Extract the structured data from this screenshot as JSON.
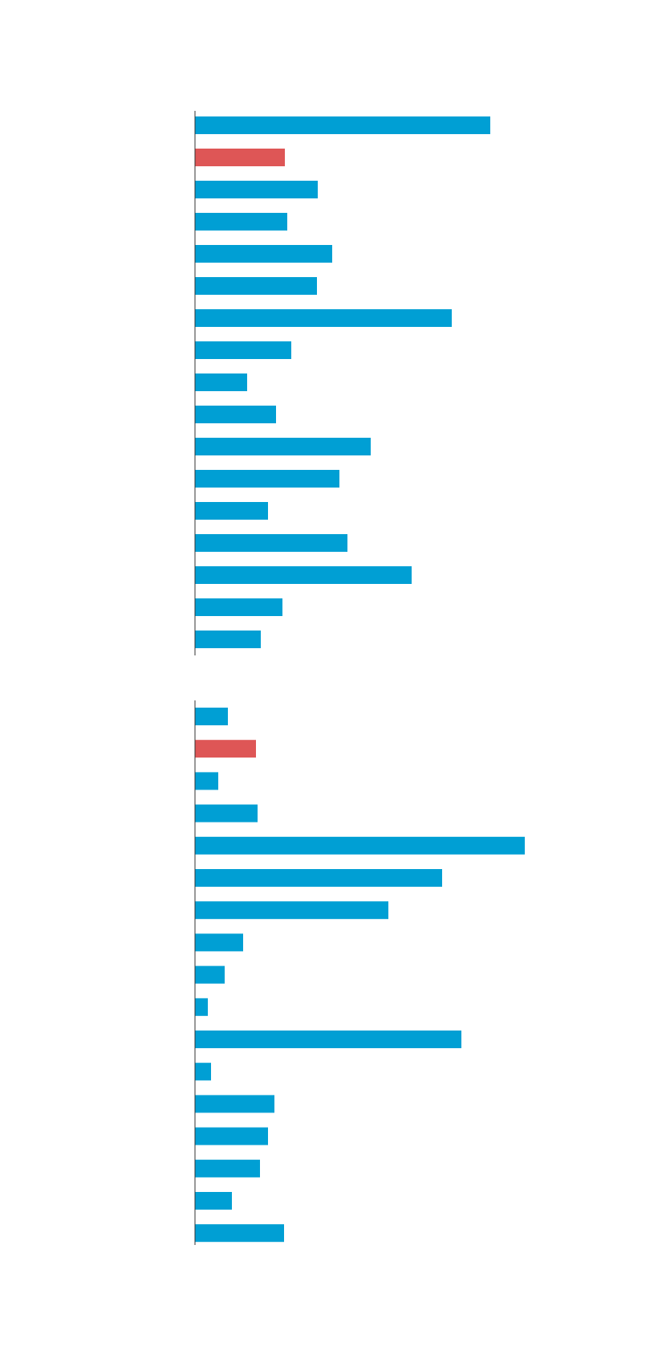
{
  "chart_data": [
    {
      "type": "bar",
      "orientation": "horizontal",
      "values": [
        368,
        112,
        153,
        115,
        171,
        152,
        320,
        120,
        65,
        101,
        219,
        180,
        91,
        190,
        270,
        109,
        82
      ],
      "highlight_index": 1,
      "bar_color": "#009FD4",
      "highlight_color": "#DE5656",
      "xlim": [
        0,
        410
      ],
      "grid": false
    },
    {
      "type": "bar",
      "orientation": "horizontal",
      "values": [
        41,
        76,
        29,
        78,
        411,
        308,
        241,
        60,
        37,
        16,
        332,
        20,
        99,
        91,
        81,
        46,
        111
      ],
      "highlight_index": 1,
      "bar_color": "#009FD4",
      "highlight_color": "#DE5656",
      "xlim": [
        0,
        410
      ],
      "grid": false
    }
  ]
}
